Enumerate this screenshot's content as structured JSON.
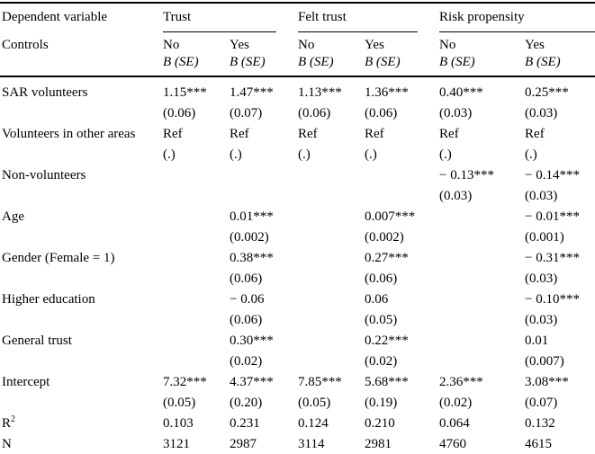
{
  "table": {
    "corner": {
      "row1": "Dependent variable",
      "row2": "Controls"
    },
    "groups": [
      {
        "label": "Trust"
      },
      {
        "label": "Felt trust"
      },
      {
        "label": "Risk propensity"
      }
    ],
    "subheaders": [
      {
        "control": "No",
        "stat": "B (SE)"
      },
      {
        "control": "Yes",
        "stat": "B (SE)"
      },
      {
        "control": "No",
        "stat": "B (SE)"
      },
      {
        "control": "Yes",
        "stat": "B (SE)"
      },
      {
        "control": "No",
        "stat": "B (SE)"
      },
      {
        "control": "Yes",
        "stat": "B (SE)"
      }
    ],
    "rows": [
      {
        "label": "SAR volunteers",
        "coef": [
          "1.15***",
          "1.47***",
          "1.13***",
          "1.36***",
          "0.40***",
          "0.25***"
        ],
        "se": [
          "(0.06)",
          "(0.07)",
          "(0.06)",
          "(0.06)",
          "(0.03)",
          "(0.03)"
        ]
      },
      {
        "label": "Volunteers in other areas",
        "coef": [
          "Ref",
          "Ref",
          "Ref",
          "Ref",
          "Ref",
          "Ref"
        ],
        "se": [
          "(.)",
          "(.)",
          "(.)",
          "(.)",
          "(.)",
          "(.)"
        ]
      },
      {
        "label": "Non-volunteers",
        "coef": [
          "",
          "",
          "",
          "",
          "− 0.13***",
          "− 0.14***"
        ],
        "se": [
          "",
          "",
          "",
          "",
          "(0.03)",
          "(0.03)"
        ]
      },
      {
        "label": "Age",
        "coef": [
          "",
          "0.01***",
          "",
          "0.007***",
          "",
          "− 0.01***"
        ],
        "se": [
          "",
          "(0.002)",
          "",
          "(0.002)",
          "",
          "(0.001)"
        ]
      },
      {
        "label": "Gender (Female = 1)",
        "coef": [
          "",
          "0.38***",
          "",
          "0.27***",
          "",
          "− 0.31***"
        ],
        "se": [
          "",
          "(0.06)",
          "",
          "(0.06)",
          "",
          "(0.03)"
        ]
      },
      {
        "label": "Higher education",
        "coef": [
          "",
          "− 0.06",
          "",
          "0.06",
          "",
          "− 0.10***"
        ],
        "se": [
          "",
          "(0.06)",
          "",
          "(0.05)",
          "",
          "(0.03)"
        ]
      },
      {
        "label": "General trust",
        "coef": [
          "",
          "0.30***",
          "",
          "0.22***",
          "",
          "0.01"
        ],
        "se": [
          "",
          "(0.02)",
          "",
          "(0.02)",
          "",
          "(0.007)"
        ]
      },
      {
        "label": "Intercept",
        "coef": [
          "7.32***",
          "4.37***",
          "7.85***",
          "5.68***",
          "2.36***",
          "3.08***"
        ],
        "se": [
          "(0.05)",
          "(0.20)",
          "(0.05)",
          "(0.19)",
          "(0.02)",
          "(0.07)"
        ]
      }
    ],
    "stat_rows": [
      {
        "label_main": "R",
        "label_sup": "2",
        "values": [
          "0.103",
          "0.231",
          "0.124",
          "0.210",
          "0.064",
          "0.132"
        ]
      },
      {
        "label_main": "N",
        "label_sup": "",
        "values": [
          "3121",
          "2987",
          "3114",
          "2981",
          "4760",
          "4615"
        ]
      }
    ]
  }
}
